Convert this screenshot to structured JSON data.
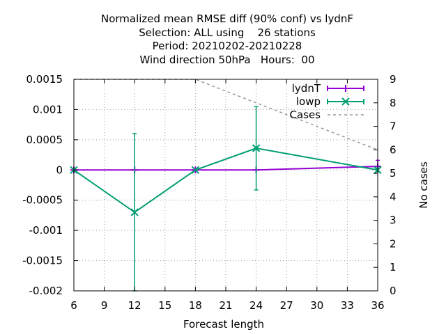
{
  "chart_data": {
    "type": "line",
    "title_lines": [
      "Normalized mean RMSE diff (90% conf) vs lydnF",
      "Selection: ALL using    26 stations",
      "Period: 20210202-20210228",
      "Wind direction 50hPa   Hours:  00"
    ],
    "xlabel": "Forecast length",
    "ylabel": "",
    "y2label": "No cases",
    "xlim": [
      6,
      36
    ],
    "ylim": [
      -0.002,
      0.0015
    ],
    "y2lim": [
      0,
      9
    ],
    "x_ticks": [
      6,
      9,
      12,
      15,
      18,
      21,
      24,
      27,
      30,
      33,
      36
    ],
    "y_ticks": [
      "-0.002",
      "-0.0015",
      "-0.001",
      "-0.0005",
      "0",
      "0.0005",
      "0.001",
      "0.0015"
    ],
    "y2_ticks": [
      0,
      1,
      2,
      3,
      4,
      5,
      6,
      7,
      8,
      9
    ],
    "grid": true,
    "legend_position": "top-right",
    "series": [
      {
        "name": "lydnT",
        "color": "#9400d3",
        "marker": "plus",
        "axis": "y",
        "x": [
          6,
          12,
          18,
          24,
          36
        ],
        "y": [
          0,
          0,
          0,
          0,
          6e-05
        ],
        "err_low": [
          0,
          0,
          0,
          0,
          -3e-05
        ],
        "err_high": [
          0,
          0,
          0,
          0,
          0.00016
        ]
      },
      {
        "name": "lowp",
        "color": "#009e73",
        "marker": "cross",
        "axis": "y",
        "x": [
          6,
          12,
          18,
          24,
          36
        ],
        "y": [
          0,
          -0.0007,
          0,
          0.00036,
          0
        ],
        "err_low": [
          0,
          -0.002,
          0,
          -0.00033,
          -3e-05
        ],
        "err_high": [
          0,
          0.0006,
          0,
          0.00105,
          3e-05
        ]
      },
      {
        "name": "Cases",
        "color": "#999999",
        "dash": true,
        "axis": "y2",
        "x": [
          6,
          12,
          18,
          24,
          36
        ],
        "y": [
          9,
          9,
          9,
          8,
          6
        ]
      }
    ]
  }
}
